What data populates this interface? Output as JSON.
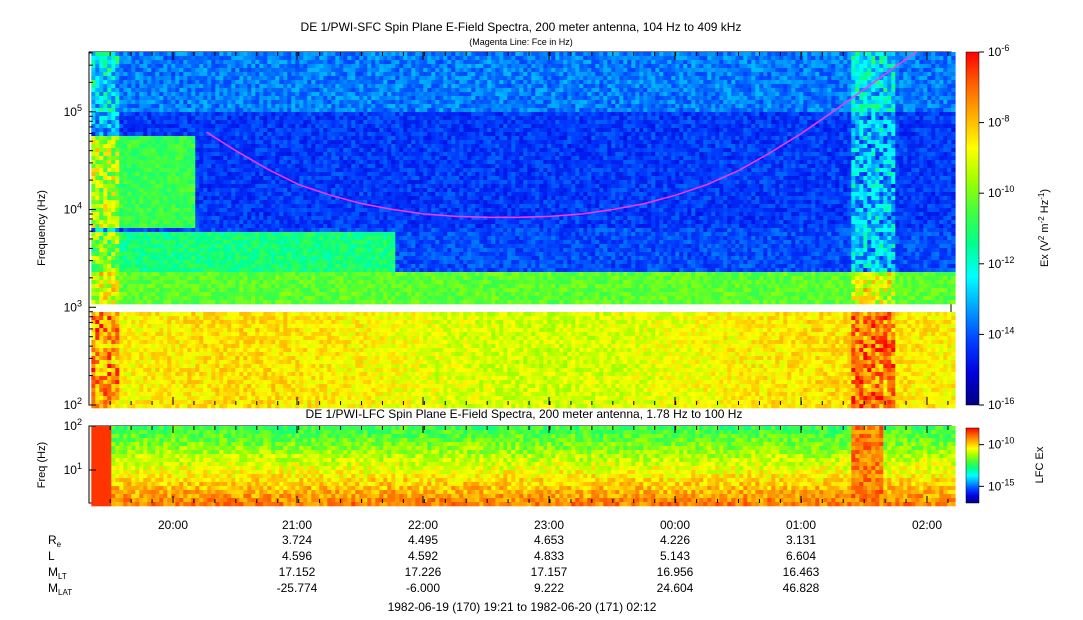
{
  "chart_data": [
    {
      "type": "heatmap",
      "title": "DE 1/PWI-SFC  Spin Plane E-Field Spectra, 200 meter antenna, 104 Hz to 409 kHz",
      "subtitle": "(Magenta Line: Fce in Hz)",
      "ylabel": "Frequency (Hz)",
      "yscale": "log",
      "ylim": [
        100,
        409000
      ],
      "yticks": [
        {
          "label": "10",
          "sup": "2"
        },
        {
          "label": "10",
          "sup": "3"
        },
        {
          "label": "10",
          "sup": "4"
        },
        {
          "label": "10",
          "sup": "5"
        }
      ],
      "data_start": "19:21",
      "data_end": "02:12",
      "data_gap_hz": [
        960,
        1060
      ],
      "colorbar": {
        "label_parts": [
          "Ex (V",
          "2",
          " m",
          "-2",
          " Hz",
          "-1",
          ")"
        ],
        "scale": "log",
        "range": [
          1e-16,
          1e-06
        ],
        "ticks": [
          {
            "label": "10",
            "sup": "-6"
          },
          {
            "label": "10",
            "sup": "-8"
          },
          {
            "label": "10",
            "sup": "-10"
          },
          {
            "label": "10",
            "sup": "-12"
          },
          {
            "label": "10",
            "sup": "-14"
          },
          {
            "label": "10",
            "sup": "-16"
          }
        ]
      },
      "fce_line": {
        "color": "#ff33ff",
        "times": [
          "20:16",
          "20:30",
          "20:45",
          "21:00",
          "21:15",
          "21:30",
          "21:45",
          "22:00",
          "22:15",
          "22:30",
          "22:45",
          "23:00",
          "23:15",
          "23:30",
          "23:45",
          "00:00",
          "00:15",
          "00:30",
          "00:45",
          "01:00",
          "01:15",
          "01:30",
          "01:45",
          "01:55"
        ],
        "values_hz": [
          62000,
          40000,
          26000,
          18000,
          14000,
          11500,
          10000,
          9000,
          8500,
          8300,
          8300,
          8500,
          9000,
          10000,
          11500,
          14000,
          18000,
          25000,
          38000,
          60000,
          100000,
          170000,
          290000,
          420000
        ]
      }
    },
    {
      "type": "heatmap",
      "title": "DE 1/PWI-LFC  Spin Plane E-Field Spectra, 200 meter antenna, 1.78 Hz to 100 Hz",
      "ylabel": "Freq (Hz)",
      "yscale": "log",
      "ylim": [
        1.78,
        100
      ],
      "yticks": [
        {
          "label": "10",
          "sup": "1"
        },
        {
          "label": "10",
          "sup": "2"
        }
      ],
      "colorbar": {
        "label": "LFC Ex",
        "scale": "log",
        "range": [
          1e-17,
          1e-08
        ],
        "ticks": [
          {
            "label": "10",
            "sup": "-10"
          },
          {
            "label": "10",
            "sup": "-15"
          }
        ]
      }
    }
  ],
  "time_axis": {
    "ticks": [
      "20:00",
      "21:00",
      "22:00",
      "23:00",
      "00:00",
      "01:00",
      "02:00"
    ],
    "range": "1982-06-19 (170) 19:21 to 1982-06-20 (171) 02:12"
  },
  "ephemeris": {
    "rows": [
      {
        "label": "R",
        "sub": "e",
        "values": [
          "3.724",
          "4.495",
          "4.653",
          "4.226",
          "3.131"
        ]
      },
      {
        "label": "L",
        "sub": "",
        "values": [
          "4.596",
          "4.592",
          "4.833",
          "5.143",
          "6.604"
        ]
      },
      {
        "label": "M",
        "sub": "LT",
        "values": [
          "17.152",
          "17.226",
          "17.157",
          "16.956",
          "16.463"
        ]
      },
      {
        "label": "M",
        "sub": "LAT",
        "values": [
          "-25.774",
          "-6.000",
          "9.222",
          "24.604",
          "46.828"
        ]
      }
    ]
  },
  "colors": {
    "colormap": [
      "#000080",
      "#0000dd",
      "#0040ff",
      "#00a0ff",
      "#00ffff",
      "#00ff90",
      "#40ff40",
      "#a0ff00",
      "#ffff00",
      "#ffb000",
      "#ff6000",
      "#ff0000"
    ]
  }
}
